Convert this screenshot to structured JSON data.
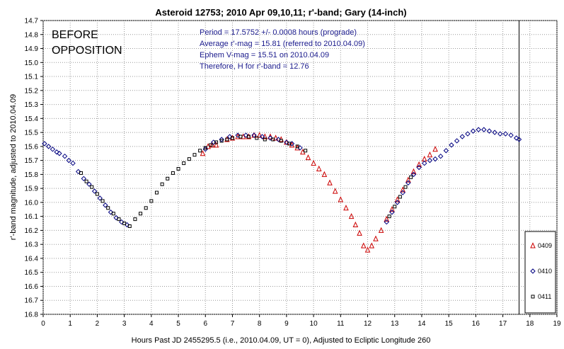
{
  "chart_data": {
    "type": "scatter",
    "title": "Asteroid 12753; 2010 Apr 09,10,11; r'-band; Gary (14-inch)",
    "xlabel": "Hours Past JD 2455295.5 (i.e., 2010.04.09, UT = 0), Adjusted to Ecliptic Longitude 260",
    "ylabel": "r'-band magnitude, adjusted to 2010.04.09",
    "xlim": [
      0,
      19
    ],
    "ylim": [
      14.7,
      16.8
    ],
    "y_inverted": true,
    "x_ticks": [
      "0",
      "1",
      "2",
      "3",
      "4",
      "5",
      "6",
      "7",
      "8",
      "9",
      "10",
      "11",
      "12",
      "13",
      "14",
      "15",
      "16",
      "17",
      "18",
      "19"
    ],
    "y_ticks": [
      "14.7",
      "14.8",
      "14.9",
      "15.0",
      "15.1",
      "15.2",
      "15.3",
      "15.4",
      "15.5",
      "15.6",
      "15.7",
      "15.8",
      "15.9",
      "16.0",
      "16.1",
      "16.2",
      "16.3",
      "16.4",
      "16.5",
      "16.6",
      "16.7",
      "16.8"
    ],
    "grid": true,
    "legend_position": "right",
    "vline_x": 17.6,
    "annotation": {
      "line1": "BEFORE",
      "line2": "OPPOSITION"
    },
    "info": [
      "Period = 17.5752 +/- 0.0008 hours (prograde)",
      "Average r'-mag = 15.81 (referred to 2010.04.09)",
      "Ephem V-mag = 15.51 on 2010.04.09",
      "Therefore, H for r'-band = 12.76"
    ],
    "series": [
      {
        "name": "0409",
        "marker": "triangle",
        "color": "#cc0000",
        "points": [
          [
            5.9,
            15.65
          ],
          [
            6.1,
            15.6
          ],
          [
            6.25,
            15.59
          ],
          [
            6.4,
            15.59
          ],
          [
            6.8,
            15.55
          ],
          [
            7.0,
            15.54
          ],
          [
            7.2,
            15.53
          ],
          [
            7.4,
            15.53
          ],
          [
            7.6,
            15.53
          ],
          [
            7.8,
            15.52
          ],
          [
            8.0,
            15.52
          ],
          [
            8.2,
            15.53
          ],
          [
            8.4,
            15.53
          ],
          [
            8.6,
            15.54
          ],
          [
            8.8,
            15.55
          ],
          [
            9.0,
            15.57
          ],
          [
            9.2,
            15.59
          ],
          [
            9.4,
            15.61
          ],
          [
            9.6,
            15.64
          ],
          [
            9.8,
            15.68
          ],
          [
            10.0,
            15.72
          ],
          [
            10.2,
            15.76
          ],
          [
            10.4,
            15.8
          ],
          [
            10.6,
            15.86
          ],
          [
            10.8,
            15.92
          ],
          [
            11.0,
            15.98
          ],
          [
            11.2,
            16.04
          ],
          [
            11.4,
            16.1
          ],
          [
            11.55,
            16.16
          ],
          [
            11.7,
            16.22
          ],
          [
            11.85,
            16.31
          ],
          [
            12.0,
            16.34
          ],
          [
            12.15,
            16.31
          ],
          [
            12.3,
            16.26
          ],
          [
            12.5,
            16.2
          ],
          [
            12.7,
            16.12
          ],
          [
            12.9,
            16.05
          ],
          [
            13.1,
            15.98
          ],
          [
            13.3,
            15.91
          ],
          [
            13.5,
            15.84
          ],
          [
            13.7,
            15.78
          ],
          [
            13.9,
            15.73
          ],
          [
            14.1,
            15.69
          ],
          [
            14.3,
            15.66
          ],
          [
            14.5,
            15.62
          ]
        ]
      },
      {
        "name": "0410",
        "marker": "diamond",
        "color": "#000080",
        "points": [
          [
            0.05,
            15.58
          ],
          [
            0.2,
            15.6
          ],
          [
            0.35,
            15.62
          ],
          [
            0.5,
            15.64
          ],
          [
            0.6,
            15.65
          ],
          [
            0.8,
            15.67
          ],
          [
            0.95,
            15.7
          ],
          [
            1.1,
            15.72
          ],
          [
            1.3,
            15.78
          ],
          [
            1.5,
            15.83
          ],
          [
            1.7,
            15.87
          ],
          [
            1.9,
            15.92
          ],
          [
            2.1,
            15.97
          ],
          [
            2.3,
            16.02
          ],
          [
            2.5,
            16.07
          ],
          [
            2.7,
            16.11
          ],
          [
            2.9,
            16.14
          ],
          [
            3.1,
            16.16
          ],
          [
            6.0,
            15.62
          ],
          [
            6.3,
            15.57
          ],
          [
            6.6,
            15.55
          ],
          [
            6.9,
            15.53
          ],
          [
            7.2,
            15.52
          ],
          [
            7.5,
            15.52
          ],
          [
            7.8,
            15.52
          ],
          [
            8.1,
            15.53
          ],
          [
            8.4,
            15.54
          ],
          [
            8.7,
            15.55
          ],
          [
            9.0,
            15.57
          ],
          [
            9.2,
            15.58
          ],
          [
            9.5,
            15.61
          ],
          [
            12.7,
            16.14
          ],
          [
            12.9,
            16.07
          ],
          [
            13.1,
            16.0
          ],
          [
            13.3,
            15.93
          ],
          [
            13.5,
            15.86
          ],
          [
            13.7,
            15.8
          ],
          [
            13.9,
            15.75
          ],
          [
            14.1,
            15.72
          ],
          [
            14.3,
            15.7
          ],
          [
            14.5,
            15.69
          ],
          [
            14.7,
            15.67
          ],
          [
            14.9,
            15.63
          ],
          [
            15.1,
            15.59
          ],
          [
            15.3,
            15.56
          ],
          [
            15.5,
            15.53
          ],
          [
            15.7,
            15.51
          ],
          [
            15.9,
            15.49
          ],
          [
            16.1,
            15.48
          ],
          [
            16.3,
            15.48
          ],
          [
            16.5,
            15.49
          ],
          [
            16.7,
            15.5
          ],
          [
            16.9,
            15.51
          ],
          [
            17.1,
            15.51
          ],
          [
            17.3,
            15.52
          ],
          [
            17.5,
            15.54
          ],
          [
            17.6,
            15.55
          ]
        ]
      },
      {
        "name": "0411",
        "marker": "square",
        "color": "#000000",
        "points": [
          [
            1.4,
            15.79
          ],
          [
            1.6,
            15.85
          ],
          [
            1.8,
            15.89
          ],
          [
            2.0,
            15.94
          ],
          [
            2.2,
            15.99
          ],
          [
            2.4,
            16.04
          ],
          [
            2.6,
            16.08
          ],
          [
            2.8,
            16.12
          ],
          [
            3.0,
            16.15
          ],
          [
            3.2,
            16.17
          ],
          [
            3.4,
            16.12
          ],
          [
            3.6,
            16.08
          ],
          [
            3.8,
            16.04
          ],
          [
            4.0,
            15.99
          ],
          [
            4.2,
            15.93
          ],
          [
            4.4,
            15.87
          ],
          [
            4.6,
            15.83
          ],
          [
            4.8,
            15.79
          ],
          [
            5.0,
            15.76
          ],
          [
            5.2,
            15.72
          ],
          [
            5.4,
            15.69
          ],
          [
            5.6,
            15.66
          ],
          [
            5.8,
            15.63
          ],
          [
            6.0,
            15.61
          ],
          [
            6.2,
            15.59
          ],
          [
            6.4,
            15.57
          ],
          [
            6.6,
            15.56
          ],
          [
            6.8,
            15.55
          ],
          [
            7.0,
            15.54
          ],
          [
            7.3,
            15.53
          ],
          [
            7.6,
            15.53
          ],
          [
            7.9,
            15.54
          ],
          [
            8.2,
            15.55
          ],
          [
            8.5,
            15.55
          ],
          [
            8.8,
            15.56
          ],
          [
            9.1,
            15.58
          ],
          [
            9.4,
            15.6
          ],
          [
            9.7,
            15.63
          ],
          [
            12.8,
            16.1
          ],
          [
            13.0,
            16.03
          ],
          [
            13.2,
            15.96
          ],
          [
            13.4,
            15.89
          ],
          [
            13.6,
            15.82
          ]
        ]
      }
    ]
  }
}
